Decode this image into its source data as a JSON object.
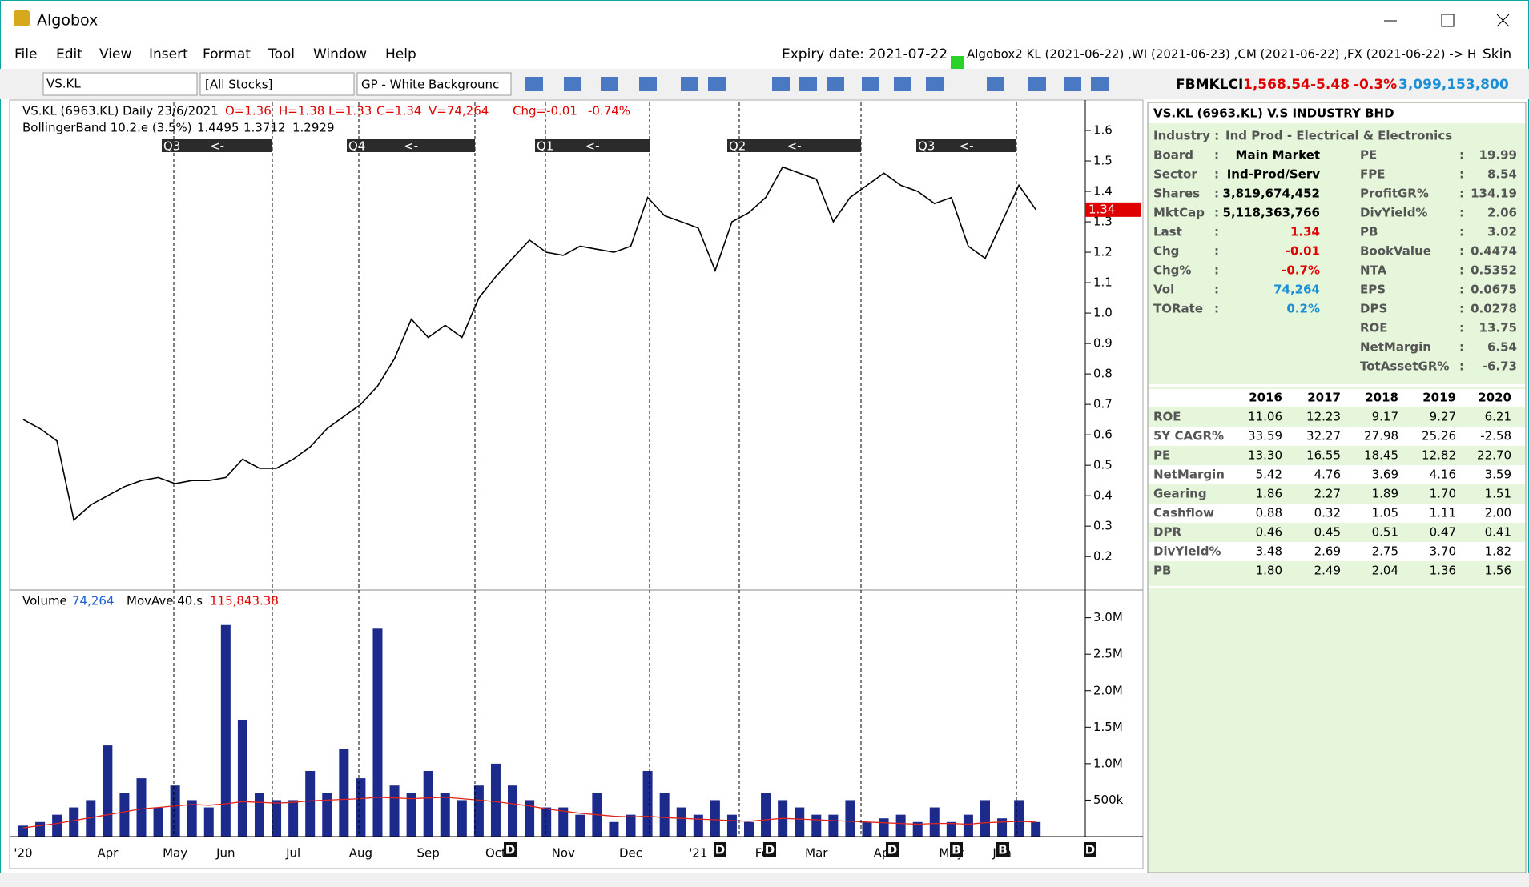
{
  "window": {
    "title": "Algobox"
  },
  "menu": {
    "items": [
      "File",
      "Edit",
      "View",
      "Insert",
      "Format",
      "Tool",
      "Window",
      "Help"
    ],
    "expiry": "Expiry date: 2021-07-22",
    "status": "Algobox2 KL (2021-06-22) ,WI (2021-06-23) ,CM (2021-06-22) ,FX (2021-06-22)  -> H",
    "skin": "Skin"
  },
  "toolbar": {
    "symbol": "VS.KL",
    "list": "[All Stocks]",
    "template": "GP - White Backgrounc",
    "index": {
      "name": "FBMKLCI",
      "last": "1,568.54",
      "change": "-5.48",
      "change_pct": "-0.3%",
      "volume": "3,099,153,800"
    }
  },
  "chart_data": [
    {
      "type": "line",
      "header": [
        "VS.KL (6963.KL) Daily  23/6/2021",
        "O=1.36",
        "H=1.38",
        "L=1.33",
        "C=1.34",
        "V=74,264",
        "Chg=-0.01",
        "-0.74%"
      ],
      "indicator": [
        "BollingerBand 10.2.e (3.5%)",
        "1.4495",
        "1.3712",
        "1.2929"
      ],
      "quarters": [
        "Q3",
        "Q4",
        "Q1",
        "Q2",
        "Q3"
      ],
      "quarter_arrow": "<-",
      "current_price": 1.34,
      "categories": [
        "'20",
        null,
        null,
        null,
        null,
        "Apr",
        null,
        null,
        null,
        "May",
        null,
        null,
        "Jun",
        null,
        null,
        null,
        "Jul",
        null,
        null,
        null,
        "Aug",
        null,
        null,
        null,
        "Sep",
        null,
        null,
        null,
        "Oct",
        null,
        null,
        null,
        "Nov",
        null,
        null,
        null,
        "Dec",
        null,
        null,
        null,
        "'21",
        null,
        null,
        null,
        "Feb",
        null,
        null,
        "Mar",
        null,
        null,
        null,
        "Apr",
        null,
        null,
        null,
        "May",
        null,
        null,
        "Jun",
        null,
        null
      ],
      "values": [
        0.65,
        0.62,
        0.58,
        0.32,
        0.37,
        0.4,
        0.43,
        0.45,
        0.46,
        0.44,
        0.45,
        0.45,
        0.46,
        0.52,
        0.49,
        0.49,
        0.52,
        0.56,
        0.62,
        0.66,
        0.7,
        0.76,
        0.85,
        0.98,
        0.92,
        0.96,
        0.92,
        1.05,
        1.12,
        1.18,
        1.24,
        1.2,
        1.19,
        1.22,
        1.21,
        1.2,
        1.22,
        1.38,
        1.32,
        1.3,
        1.28,
        1.14,
        1.3,
        1.33,
        1.38,
        1.48,
        1.46,
        1.44,
        1.3,
        1.38,
        1.42,
        1.46,
        1.42,
        1.4,
        1.36,
        1.38,
        1.22,
        1.18,
        1.3,
        1.42,
        1.34
      ],
      "color": "#000000",
      "ylim": [
        0.09,
        1.7
      ],
      "yticks": [
        0.2,
        0.3,
        0.4,
        0.5,
        0.6,
        0.7,
        0.8,
        0.9,
        {
          "value": 1,
          "label": "1.0"
        },
        1.1,
        1.2,
        1.3,
        1.4,
        1.5,
        1.6
      ]
    },
    {
      "type": "bar",
      "legend_values": [
        "74,264",
        "115,843.38"
      ],
      "markers": [
        "D",
        "D",
        "D",
        "D",
        "B",
        "B",
        "D"
      ],
      "series": [
        {
          "name": "Volume",
          "color": "#1c2a8c",
          "values": [
            150000,
            200000,
            300000,
            400000,
            500000,
            1250000,
            600000,
            800000,
            400000,
            700000,
            500000,
            400000,
            2900000,
            1600000,
            600000,
            500000,
            500000,
            900000,
            600000,
            1200000,
            800000,
            2850000,
            700000,
            600000,
            900000,
            600000,
            500000,
            700000,
            1000000,
            700000,
            500000,
            400000,
            400000,
            300000,
            600000,
            200000,
            300000,
            900000,
            600000,
            400000,
            300000,
            500000,
            300000,
            200000,
            600000,
            500000,
            400000,
            300000,
            300000,
            500000,
            200000,
            250000,
            300000,
            200000,
            400000,
            200000,
            300000,
            500000,
            250000,
            500000,
            200000
          ]
        },
        {
          "name": "MovAve 40.s",
          "color": "#e0241b",
          "values": [
            120000,
            150000,
            180000,
            220000,
            260000,
            300000,
            340000,
            380000,
            400000,
            420000,
            440000,
            430000,
            450000,
            480000,
            470000,
            460000,
            470000,
            490000,
            500000,
            510000,
            520000,
            540000,
            530000,
            520000,
            530000,
            540000,
            520000,
            500000,
            480000,
            450000,
            420000,
            380000,
            350000,
            320000,
            300000,
            280000,
            270000,
            280000,
            260000,
            250000,
            240000,
            230000,
            220000,
            210000,
            230000,
            250000,
            240000,
            230000,
            220000,
            210000,
            200000,
            190000,
            180000,
            170000,
            180000,
            180000,
            170000,
            190000,
            200000,
            210000,
            200000
          ]
        }
      ],
      "ylim": [
        0,
        3380000
      ],
      "yticks": [
        {
          "value": 500000,
          "label": "500k"
        },
        {
          "value": 1000000,
          "label": "1.0M"
        },
        {
          "value": 1500000,
          "label": "1.5M"
        },
        {
          "value": 2000000,
          "label": "2.0M"
        },
        {
          "value": 2500000,
          "label": "2.5M"
        },
        {
          "value": 3000000,
          "label": "3.0M"
        }
      ]
    }
  ],
  "panel": {
    "title": "VS.KL (6963.KL) V.S INDUSTRY BHD",
    "industry": [
      "Industry :",
      "Ind Prod - Electrical & Electronics"
    ],
    "left": [
      [
        "Board",
        "Main Market",
        "#000000"
      ],
      [
        "Sector",
        "Ind-Prod/Serv",
        "#000000"
      ],
      [
        "Shares",
        "3,819,674,452",
        "#000000"
      ],
      [
        "MktCap",
        "5,118,363,766",
        "#000000"
      ],
      [
        "Last",
        "1.34",
        "#e00000"
      ],
      [
        "Chg",
        "-0.01",
        "#e00000"
      ],
      [
        "Chg%",
        "-0.7%",
        "#e00000"
      ],
      [
        "Vol",
        "74,264",
        "#1a8fd6"
      ],
      [
        "TORate",
        "0.2%",
        "#1a8fd6"
      ]
    ],
    "right": [
      [
        "PE",
        "19.99"
      ],
      [
        "FPE",
        "8.54"
      ],
      [
        "ProfitGR%",
        "134.19"
      ],
      [
        "DivYield%",
        "2.06"
      ],
      [
        "PB",
        "3.02"
      ],
      [
        "BookValue",
        "0.4474"
      ],
      [
        "NTA",
        "0.5352"
      ],
      [
        "EPS",
        "0.0675"
      ],
      [
        "DPS",
        "0.0278"
      ],
      [
        "ROE",
        "13.75"
      ],
      [
        "NetMargin",
        "6.54"
      ],
      [
        "TotAssetGR%",
        "-6.73"
      ]
    ],
    "colon": ":",
    "financials": {
      "years": [
        "2016",
        "2017",
        "2018",
        "2019",
        "2020"
      ],
      "rows": [
        {
          "label": "ROE",
          "values": [
            "11.06",
            "12.23",
            "9.17",
            "9.27",
            "6.21"
          ]
        },
        {
          "label": "5Y CAGR%",
          "values": [
            "33.59",
            "32.27",
            "27.98",
            "25.26",
            "-2.58"
          ]
        },
        {
          "label": "PE",
          "values": [
            "13.30",
            "16.55",
            "18.45",
            "12.82",
            "22.70"
          ]
        },
        {
          "label": "NetMargin",
          "values": [
            "5.42",
            "4.76",
            "3.69",
            "4.16",
            "3.59"
          ]
        },
        {
          "label": "Gearing",
          "values": [
            "1.86",
            "2.27",
            "1.89",
            "1.70",
            "1.51"
          ]
        },
        {
          "label": "Cashflow",
          "values": [
            "0.88",
            "0.32",
            "1.05",
            "1.11",
            "2.00"
          ]
        },
        {
          "label": "DPR",
          "values": [
            "0.46",
            "0.45",
            "0.51",
            "0.47",
            "0.41"
          ]
        },
        {
          "label": "DivYield%",
          "values": [
            "3.48",
            "2.69",
            "2.75",
            "3.70",
            "1.82"
          ]
        },
        {
          "label": "PB",
          "values": [
            "1.80",
            "2.49",
            "2.04",
            "1.36",
            "1.56"
          ]
        }
      ]
    }
  }
}
